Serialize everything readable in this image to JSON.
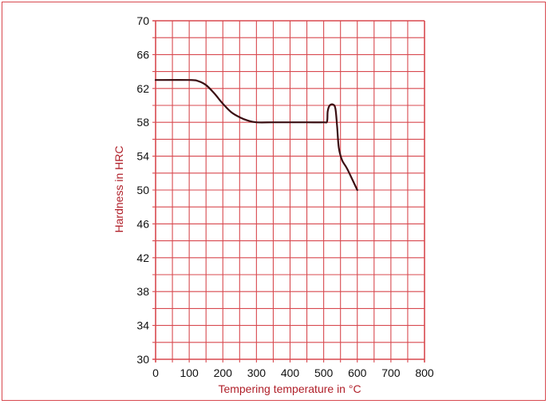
{
  "chart_data": {
    "type": "line",
    "title": "",
    "xlabel": "Tempering temperature in °C",
    "ylabel": "Hardness in HRC",
    "xlim": [
      0,
      800
    ],
    "ylim": [
      30,
      70
    ],
    "x_ticks": [
      "0",
      "100",
      "200",
      "300",
      "400",
      "500",
      "600",
      "700",
      "800"
    ],
    "y_ticks": [
      "30",
      "34",
      "38",
      "42",
      "46",
      "50",
      "54",
      "58",
      "62",
      "66",
      "70"
    ],
    "grid": true,
    "x_minor_step": 50,
    "y_minor_step": 2,
    "colors": {
      "grid": "#d8494f",
      "axis_text": "#b0202a",
      "curve": "#3a0e12",
      "tick_text": "#111111"
    },
    "series": [
      {
        "points": [
          [
            0,
            63
          ],
          [
            100,
            63
          ],
          [
            125,
            62.9
          ],
          [
            150,
            62.4
          ],
          [
            175,
            61.4
          ],
          [
            200,
            60.2
          ],
          [
            225,
            59.2
          ],
          [
            250,
            58.6
          ],
          [
            275,
            58.2
          ],
          [
            300,
            58
          ],
          [
            350,
            58
          ],
          [
            400,
            58
          ],
          [
            450,
            58
          ],
          [
            500,
            58
          ],
          [
            510,
            58.1
          ],
          [
            512,
            59.3
          ],
          [
            518,
            60
          ],
          [
            528,
            60.1
          ],
          [
            535,
            59.6
          ],
          [
            540,
            57.5
          ],
          [
            545,
            55
          ],
          [
            555,
            53.5
          ],
          [
            570,
            52.5
          ],
          [
            600,
            50
          ]
        ]
      }
    ]
  }
}
